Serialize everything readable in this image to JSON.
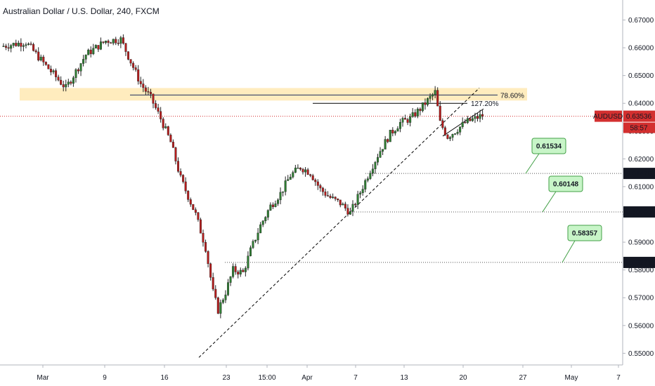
{
  "header": {
    "title": "Australian Dollar / U.S. Dollar, 240, FXCM"
  },
  "chart_data": {
    "type": "candlestick",
    "title": "Australian Dollar / U.S. Dollar, 240, FXCM",
    "symbol": "AUDUSD",
    "ylim": [
      0.5458,
      0.6772
    ],
    "y_ticks": [
      "0.67000",
      "0.66000",
      "0.65000",
      "0.64000",
      "0.63000",
      "0.62000",
      "0.61000",
      "0.60000",
      "0.59000",
      "0.58000",
      "0.57000",
      "0.56000",
      "0.55000"
    ],
    "x_ticks": [
      "Mar",
      "9",
      "16",
      "23",
      "15:00",
      "Apr",
      "7",
      "13",
      "20",
      "27",
      "May",
      "7"
    ],
    "price": {
      "value": "0.63536",
      "countdown": "58:57",
      "symbol": "AUDUSD"
    },
    "fib_zone": {
      "label": "78.60%",
      "low": 0.641,
      "high": 0.6455,
      "level": 0.643
    },
    "extension": {
      "label": "127.20%",
      "level": 0.64
    },
    "levels": [
      {
        "value": 0.61476,
        "label": "0.61476",
        "target": "0.61534"
      },
      {
        "value": 0.6009,
        "label": "0.60090",
        "target": "0.60148"
      },
      {
        "value": 0.58271,
        "label": "0.58271",
        "target": "0.58357"
      }
    ],
    "path": [
      [
        0,
        0.6605
      ],
      [
        10,
        0.662
      ],
      [
        18,
        0.6535
      ],
      [
        26,
        0.6455
      ],
      [
        34,
        0.6575
      ],
      [
        42,
        0.6625
      ],
      [
        48,
        0.663
      ],
      [
        52,
        0.655
      ],
      [
        56,
        0.647
      ],
      [
        60,
        0.642
      ],
      [
        64,
        0.6345
      ],
      [
        68,
        0.626
      ],
      [
        72,
        0.613
      ],
      [
        78,
        0.6
      ],
      [
        82,
        0.588
      ],
      [
        85,
        0.572
      ],
      [
        87,
        0.5655
      ],
      [
        90,
        0.572
      ],
      [
        93,
        0.58
      ],
      [
        97,
        0.579
      ],
      [
        100,
        0.587
      ],
      [
        104,
        0.596
      ],
      [
        108,
        0.603
      ],
      [
        112,
        0.6075
      ],
      [
        116,
        0.614
      ],
      [
        120,
        0.617
      ],
      [
        124,
        0.615
      ],
      [
        128,
        0.609
      ],
      [
        132,
        0.606
      ],
      [
        136,
        0.604
      ],
      [
        140,
        0.6005
      ],
      [
        144,
        0.608
      ],
      [
        148,
        0.616
      ],
      [
        152,
        0.623
      ],
      [
        156,
        0.629
      ],
      [
        160,
        0.633
      ],
      [
        164,
        0.6345
      ],
      [
        168,
        0.638
      ],
      [
        172,
        0.642
      ],
      [
        174,
        0.644
      ],
      [
        176,
        0.633
      ],
      [
        179,
        0.628
      ],
      [
        182,
        0.63
      ],
      [
        186,
        0.633
      ],
      [
        190,
        0.6345
      ],
      [
        192,
        0.6353
      ]
    ]
  }
}
